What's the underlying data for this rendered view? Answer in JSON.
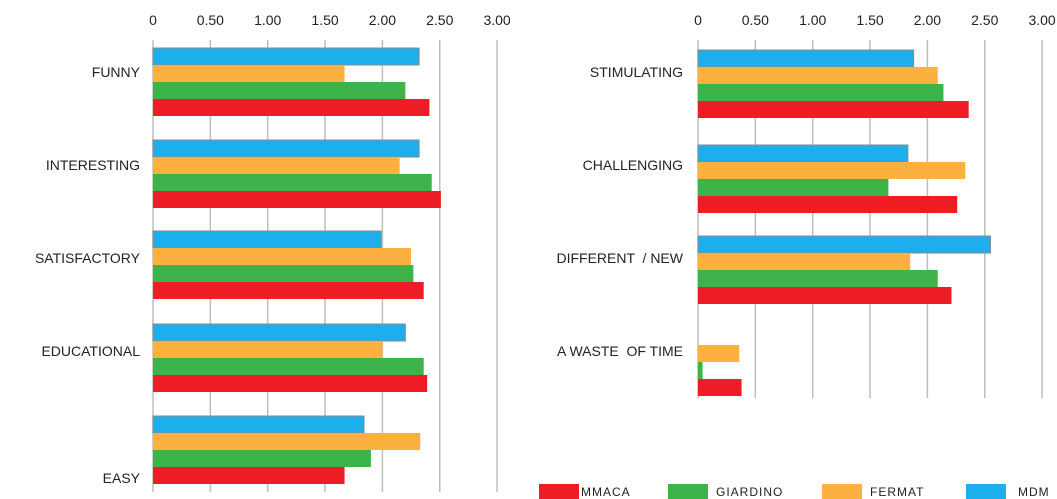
{
  "colors": {
    "MMACA": "#ee1c25",
    "GIARDINO": "#3db449",
    "FERMAT": "#fbb040",
    "MDM": "#1caeed",
    "grid": "#bdbdbd"
  },
  "legend": {
    "items": [
      "MMACA",
      "GIARDINO",
      "FERMAT",
      "MDM"
    ]
  },
  "chart_data": [
    {
      "type": "bar",
      "orientation": "horizontal",
      "xlim": [
        0,
        3.0
      ],
      "tick_labels": [
        "0",
        "0.50",
        "1.00",
        "1.50",
        "2.00",
        "2.50",
        "3.00"
      ],
      "categories": [
        "FUNNY",
        "INTERESTING",
        "SATISFACTORY",
        "EDUCATIONAL",
        "EASY"
      ],
      "series": [
        {
          "name": "MDM",
          "values": [
            2.32,
            2.32,
            1.99,
            2.2,
            1.84
          ]
        },
        {
          "name": "FERMAT",
          "values": [
            1.67,
            2.15,
            2.25,
            2.0,
            2.33
          ]
        },
        {
          "name": "GIARDINO",
          "values": [
            2.2,
            2.43,
            2.27,
            2.36,
            1.9
          ]
        },
        {
          "name": "MMACA",
          "values": [
            2.41,
            2.51,
            2.36,
            2.39,
            1.67
          ]
        }
      ],
      "grid": true
    },
    {
      "type": "bar",
      "orientation": "horizontal",
      "xlim": [
        0,
        3.0
      ],
      "tick_labels": [
        "0",
        "0.50",
        "1.00",
        "1.50",
        "2.00",
        "2.50",
        "3.00"
      ],
      "categories": [
        "STIMULATING",
        "CHALLENGING",
        "DIFFERENT  / NEW",
        "A WASTE  OF TIME"
      ],
      "series": [
        {
          "name": "MDM",
          "values": [
            1.88,
            1.83,
            2.55,
            0
          ]
        },
        {
          "name": "FERMAT",
          "values": [
            2.09,
            2.33,
            1.85,
            0.36
          ]
        },
        {
          "name": "GIARDINO",
          "values": [
            2.14,
            1.66,
            2.09,
            0.04
          ]
        },
        {
          "name": "MMACA",
          "values": [
            2.36,
            2.26,
            2.21,
            0.38
          ]
        }
      ],
      "grid": true
    }
  ]
}
